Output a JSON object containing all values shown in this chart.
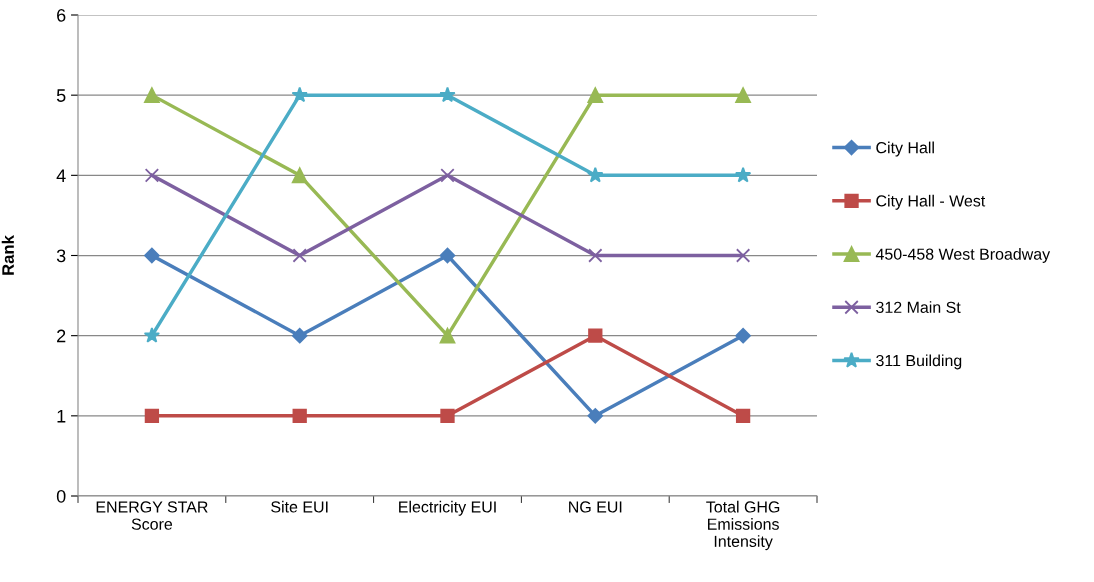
{
  "chart_data": {
    "type": "line",
    "ylabel": "Rank",
    "categories": [
      "ENERGY STAR Score",
      "Site EUI",
      "Electricity EUI",
      "NG EUI",
      "Total GHG Emissions Intensity"
    ],
    "series": [
      {
        "name": "City Hall",
        "color": "#4a7ebb",
        "marker": "diamond",
        "values": [
          3,
          2,
          3,
          1,
          2
        ]
      },
      {
        "name": "City Hall - West",
        "color": "#be4b48",
        "marker": "square",
        "values": [
          1,
          1,
          1,
          2,
          1
        ]
      },
      {
        "name": "450-458 West Broadway",
        "color": "#98b954",
        "marker": "triangle",
        "values": [
          5,
          4,
          2,
          5,
          5
        ]
      },
      {
        "name": "312 Main St",
        "color": "#7d60a0",
        "marker": "cross",
        "values": [
          4,
          3,
          4,
          3,
          3
        ]
      },
      {
        "name": "311 Building",
        "color": "#4bacc6",
        "marker": "star",
        "values": [
          2,
          5,
          5,
          4,
          4
        ]
      }
    ],
    "ylim": [
      0,
      6
    ],
    "yticks": [
      0,
      1,
      2,
      3,
      4,
      5,
      6
    ],
    "grid": "y",
    "legend": "right"
  }
}
